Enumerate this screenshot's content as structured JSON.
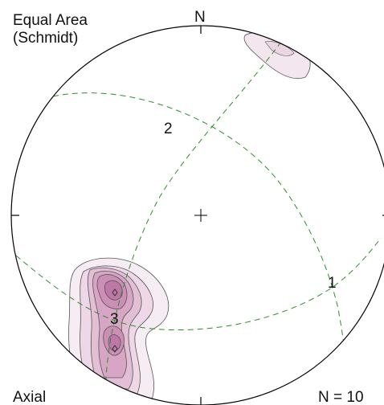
{
  "projection": {
    "line1": "Equal Area",
    "line2": "(Schmidt)"
  },
  "north_label": "N",
  "plane_labels": [
    "1",
    "2",
    "3"
  ],
  "data_type": "Axial",
  "count_label": "N = 10",
  "colors": {
    "circle": "#000000",
    "great_circles": "#2e8b2e",
    "contour_line": "#555555",
    "contour_fills": [
      "#f6ecf3",
      "#eed8e7",
      "#e3bfd6",
      "#d7a6c5",
      "#cb8fb6",
      "#bd78a6"
    ]
  }
}
